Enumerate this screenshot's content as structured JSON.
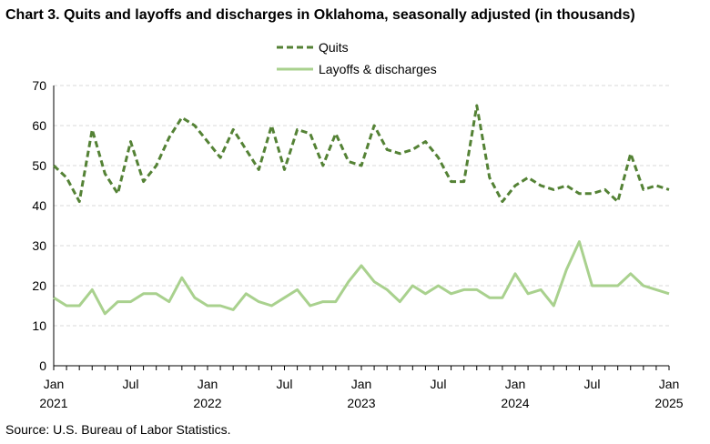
{
  "chart_data": {
    "type": "line",
    "title": "Chart 3. Quits and layoffs and discharges in Oklahoma, seasonally adjusted (in thousands)",
    "source": "Source: U.S. Bureau of Labor Statistics.",
    "xlabel": "",
    "ylabel": "",
    "ylim": [
      0,
      70
    ],
    "y_ticks": [
      0,
      10,
      20,
      30,
      40,
      50,
      60,
      70
    ],
    "grid": true,
    "legend_position": "top-center",
    "x": [
      "2021-01",
      "2021-02",
      "2021-03",
      "2021-04",
      "2021-05",
      "2021-06",
      "2021-07",
      "2021-08",
      "2021-09",
      "2021-10",
      "2021-11",
      "2021-12",
      "2022-01",
      "2022-02",
      "2022-03",
      "2022-04",
      "2022-05",
      "2022-06",
      "2022-07",
      "2022-08",
      "2022-09",
      "2022-10",
      "2022-11",
      "2022-12",
      "2023-01",
      "2023-02",
      "2023-03",
      "2023-04",
      "2023-05",
      "2023-06",
      "2023-07",
      "2023-08",
      "2023-09",
      "2023-10",
      "2023-11",
      "2023-12",
      "2024-01",
      "2024-02",
      "2024-03",
      "2024-04",
      "2024-05",
      "2024-06",
      "2024-07",
      "2024-08",
      "2024-09",
      "2024-10",
      "2024-11",
      "2024-12",
      "2025-01"
    ],
    "x_ticks": [
      {
        "month": "Jan",
        "year": "2021"
      },
      {
        "month": "Jul",
        "year": ""
      },
      {
        "month": "Jan",
        "year": "2022"
      },
      {
        "month": "Jul",
        "year": ""
      },
      {
        "month": "Jan",
        "year": "2023"
      },
      {
        "month": "Jul",
        "year": ""
      },
      {
        "month": "Jan",
        "year": "2024"
      },
      {
        "month": "Jul",
        "year": ""
      },
      {
        "month": "Jan",
        "year": "2025"
      }
    ],
    "series": [
      {
        "name": "Quits",
        "color": "#548235",
        "dash": true,
        "values": [
          50,
          47,
          41,
          59,
          48,
          43,
          56,
          46,
          50,
          57,
          62,
          60,
          56,
          52,
          59,
          54,
          49,
          60,
          49,
          59,
          58,
          50,
          58,
          51,
          50,
          60,
          54,
          53,
          54,
          56,
          52,
          46,
          46,
          65,
          47,
          41,
          45,
          47,
          45,
          44,
          45,
          43,
          43,
          44,
          41,
          53,
          44,
          45,
          44
        ]
      },
      {
        "name": "Layoffs & discharges",
        "color": "#a9d18e",
        "dash": false,
        "values": [
          17,
          15,
          15,
          19,
          13,
          16,
          16,
          18,
          18,
          16,
          22,
          17,
          15,
          15,
          14,
          18,
          16,
          15,
          17,
          19,
          15,
          16,
          16,
          21,
          25,
          21,
          19,
          16,
          20,
          18,
          20,
          18,
          19,
          19,
          17,
          17,
          23,
          18,
          19,
          15,
          24,
          31,
          20,
          20,
          20,
          23,
          20,
          19,
          18
        ]
      }
    ]
  }
}
